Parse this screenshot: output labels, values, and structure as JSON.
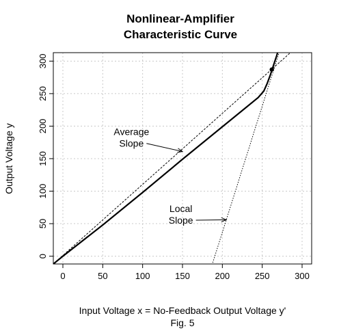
{
  "chart_data": {
    "type": "line",
    "title": [
      "Nonlinear-Amplifier",
      "Characteristic Curve"
    ],
    "xlabel": "Input Voltage x = No-Feedback Output Voltage y'",
    "caption": "Fig. 5",
    "ylabel": "Output Voltage y",
    "xlim": [
      -12,
      312
    ],
    "ylim": [
      -12,
      313
    ],
    "xticks": [
      0,
      50,
      100,
      150,
      200,
      250,
      300
    ],
    "yticks": [
      0,
      50,
      100,
      150,
      200,
      250,
      300
    ],
    "grid": true,
    "series": [
      {
        "style": "solid-thick",
        "x": [
          -12,
          0,
          50,
          100,
          150,
          200,
          230,
          245,
          252,
          256,
          260,
          264,
          268,
          270
        ],
        "y": [
          -12,
          0,
          48,
          98,
          149,
          199,
          229,
          244,
          254,
          265,
          278,
          293,
          308,
          316
        ]
      },
      {
        "style": "dashed",
        "x": [
          -12,
          290
        ],
        "y": [
          -12,
          318
        ]
      },
      {
        "style": "dotted",
        "x": [
          188,
          272
        ],
        "y": [
          -10,
          316
        ]
      }
    ],
    "marker": {
      "x": 262,
      "y": 287
    },
    "annotations": [
      {
        "lines": [
          "Average",
          "Slope"
        ],
        "x": 86,
        "y": 186,
        "arrow_to": [
          150,
          161
        ]
      },
      {
        "lines": [
          "Local",
          "Slope"
        ],
        "x": 148,
        "y": 68,
        "arrow_to": [
          205,
          56
        ]
      }
    ]
  }
}
